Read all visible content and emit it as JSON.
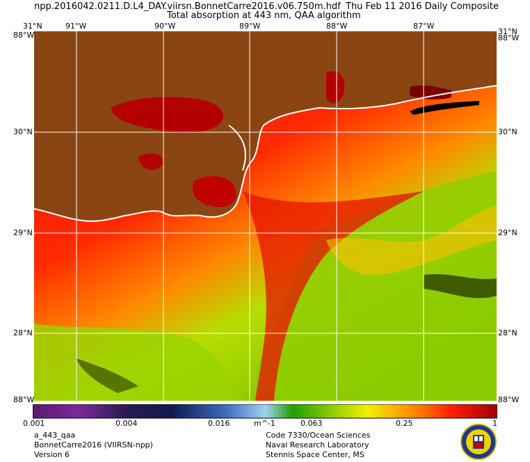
{
  "header": {
    "filename": "npp.2016042.0211.D.L4_DAY.viirsn.BonnetCarre2016.v06.750m.hdf",
    "date": "Thu Feb 11 2016 Daily Composite",
    "subtitle": "Total absorption at 443 nm, QAA algorithm"
  },
  "map": {
    "lon_labels": [
      "91°W",
      "90°W",
      "89°W",
      "88°W",
      "87°W"
    ],
    "lat_labels": [
      "30°N",
      "29°N",
      "28°N"
    ],
    "corner_top_lat": "31°N",
    "corner_top_lon": "88°W",
    "corner_bottom_lat": "28°N",
    "corner_bottom_lon": "88°W",
    "corner_left_top": "31°N",
    "corner_left_bottom": "88°W",
    "corner_right_top": "31°N",
    "corner_right_bottom": "88°W",
    "colors": {
      "land": "#8B4513",
      "coast": "#ffffff",
      "grid": "#ffffff",
      "high": "#cc0000",
      "mid": "#ff4400",
      "low": "#88cc00"
    }
  },
  "colorbar": {
    "ticks": [
      "0.001",
      "0.004",
      "0.016",
      "0.063",
      "0.25",
      "1"
    ],
    "unit": "m^-1"
  },
  "footer": {
    "left": [
      "a_443_qaa",
      "BonnetCarre2016 (VIIRSN-npp)",
      "Version 6"
    ],
    "right": [
      "Code 7330/Ocean Sciences",
      "Naval Research Laboratory",
      "Stennis Space Center, MS"
    ]
  },
  "seal_icon": "nrl-seal-icon"
}
